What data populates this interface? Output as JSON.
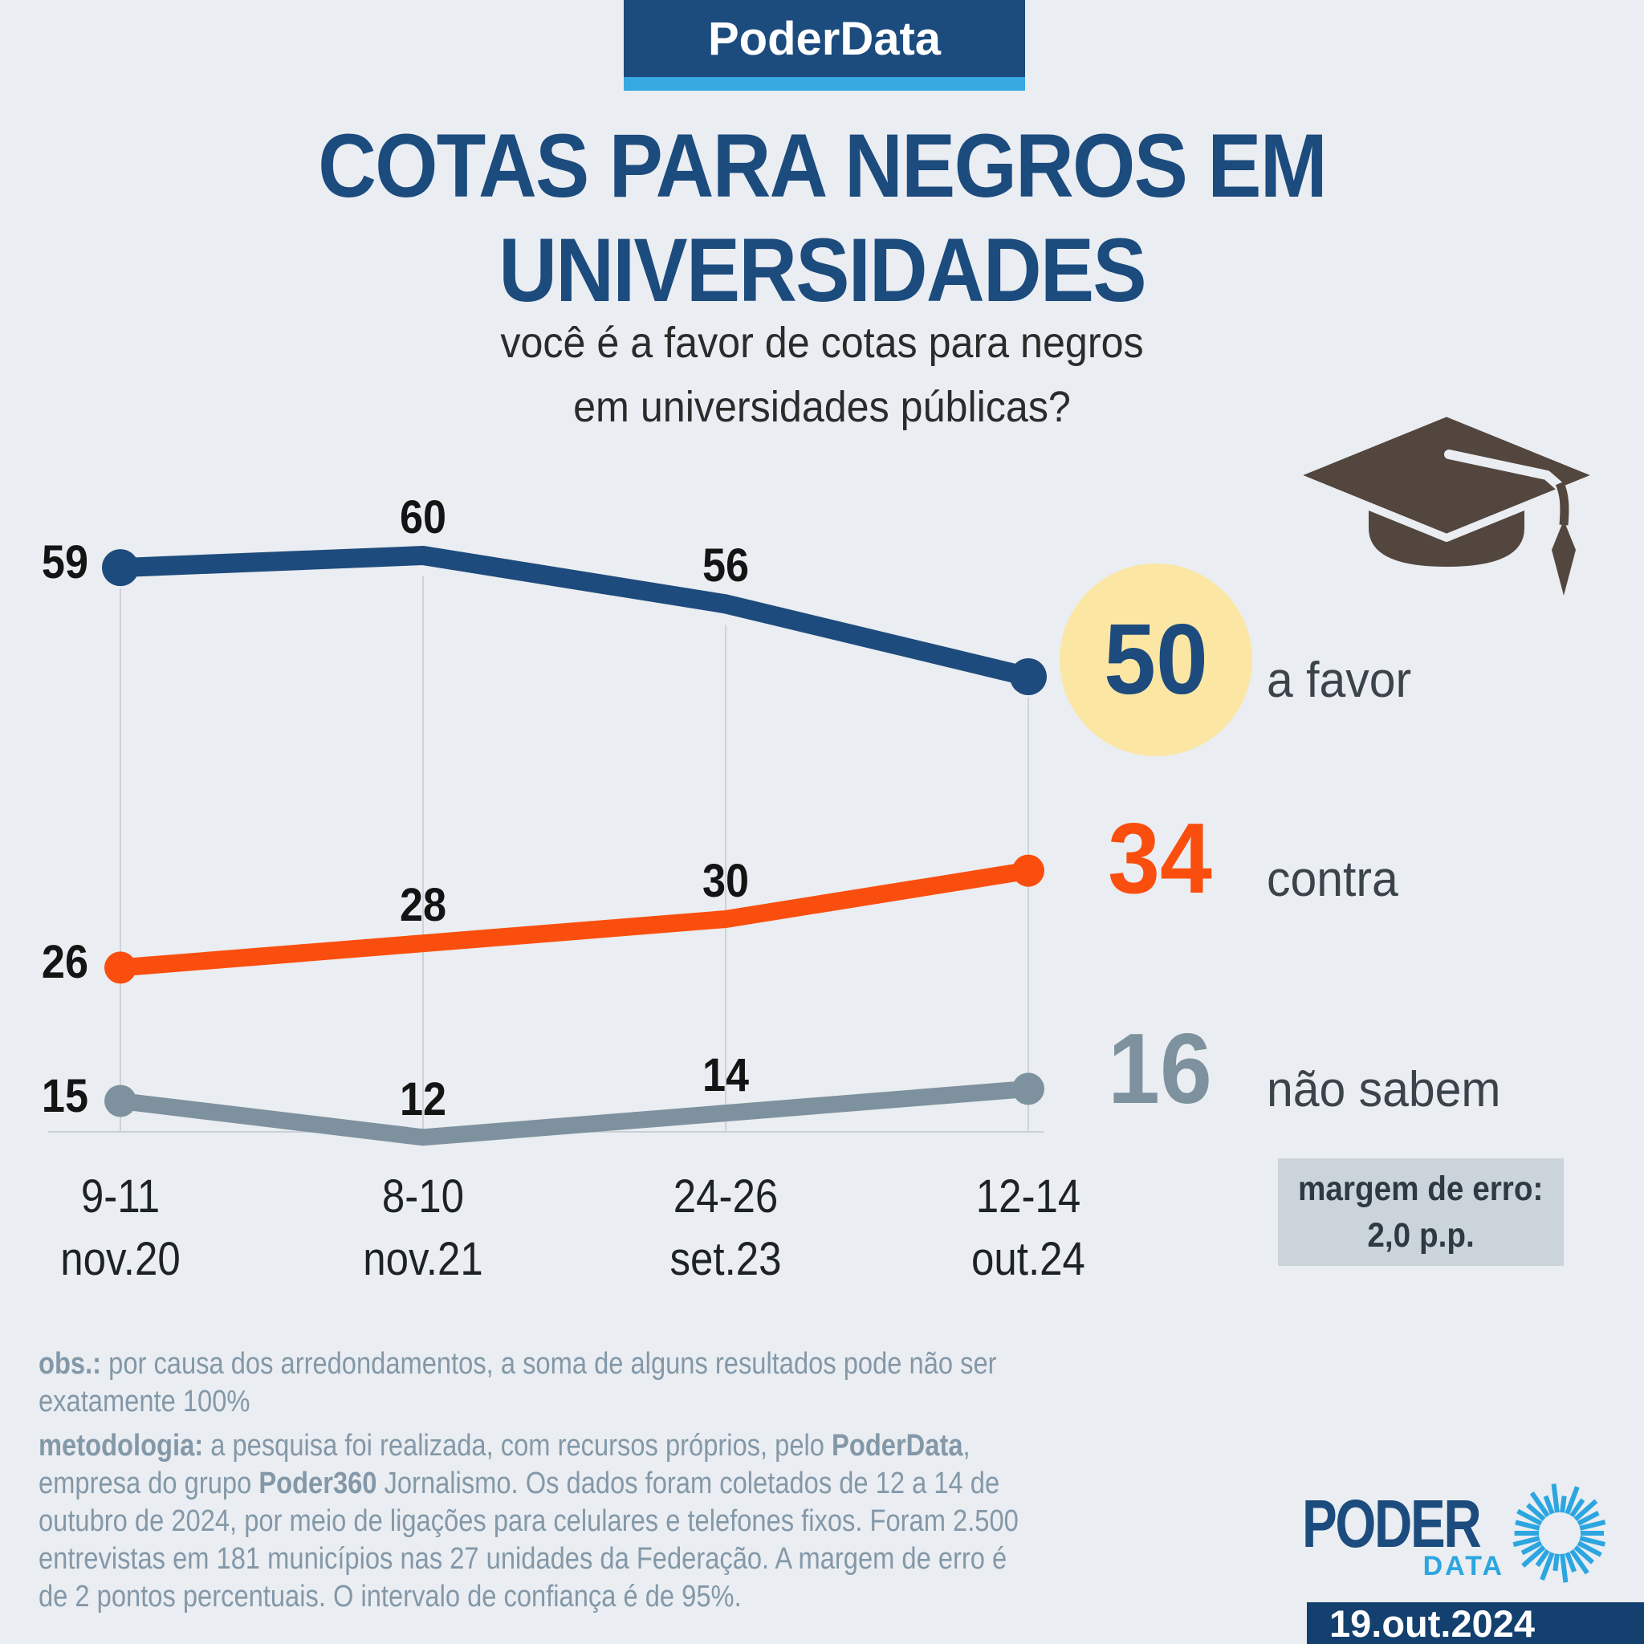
{
  "header": {
    "brand": "PoderData"
  },
  "title": {
    "line1": "COTAS PARA NEGROS EM",
    "line2": "UNIVERSIDADES"
  },
  "subtitle": {
    "line1": "você é a favor de cotas para negros",
    "line2": "em universidades públicas?"
  },
  "chart_data": {
    "type": "line",
    "title": "COTAS PARA NEGROS EM UNIVERSIDADES",
    "question": "você é a favor de cotas para negros em universidades públicas?",
    "categories": [
      {
        "days": "9-11",
        "month": "nov.20"
      },
      {
        "days": "8-10",
        "month": "nov.21"
      },
      {
        "days": "24-26",
        "month": "set.23"
      },
      {
        "days": "12-14",
        "month": "out.24"
      }
    ],
    "series": [
      {
        "name": "a favor",
        "color": "#1e4b7d",
        "values": [
          59,
          60,
          56,
          50
        ]
      },
      {
        "name": "contra",
        "color": "#fa4e0e",
        "values": [
          26,
          28,
          30,
          34
        ]
      },
      {
        "name": "não sabem",
        "color": "#7d929e",
        "values": [
          15,
          12,
          14,
          16
        ]
      }
    ],
    "ylim": [
      8,
      66
    ],
    "grid": "vertical-per-point",
    "legend_position": "right-of-last-point",
    "highlight": {
      "series": "a favor",
      "value": 50,
      "circle_color": "#fbe6a4"
    }
  },
  "legend": [
    {
      "value": "50",
      "label": "a favor",
      "color": "#1e4b7d",
      "highlighted": true
    },
    {
      "value": "34",
      "label": "contra",
      "color": "#fa4e0e",
      "highlighted": false
    },
    {
      "value": "16",
      "label": "não sabem",
      "color": "#7d929e",
      "highlighted": false
    }
  ],
  "margin_note": {
    "line1": "margem de erro:",
    "line2": "2,0 p.p."
  },
  "footnotes": {
    "obs": [
      {
        "text": "obs.:",
        "bold": true
      },
      {
        "text": " por causa dos arredondamentos, a soma de alguns resultados pode não ser exatamente 100%",
        "bold": false
      }
    ],
    "metodologia": [
      {
        "text": "metodologia:",
        "bold": true
      },
      {
        "text": " a pesquisa foi realizada, com recursos próprios, pelo ",
        "bold": false
      },
      {
        "text": "PoderData",
        "bold": true
      },
      {
        "text": ", empresa do grupo ",
        "bold": false
      },
      {
        "text": "Poder360",
        "bold": true
      },
      {
        "text": " Jornalismo. Os dados foram coletados de 12 a 14 de outubro de 2024, por meio de ligações para celulares e telefones fixos. Foram 2.500 entrevistas em 181 municípios nas 27 unidades da Federação. A margem de erro é de 2 pontos percentuais. O intervalo de confiança é de 95%.",
        "bold": false
      }
    ]
  },
  "logo": {
    "word1": "PODER",
    "word2": "DATA"
  },
  "date_badge": "19.out.2024",
  "colors": {
    "background": "#eaedf1",
    "navy": "#1c4b7e",
    "light_blue": "#36a9e1",
    "orange": "#fa4e0e",
    "slate": "#7d929e",
    "highlight_yellow": "#fbe6a4",
    "gridline": "#cdd3d9",
    "cap_brown": "#52463e",
    "footnote_gray": "#8398a8"
  }
}
